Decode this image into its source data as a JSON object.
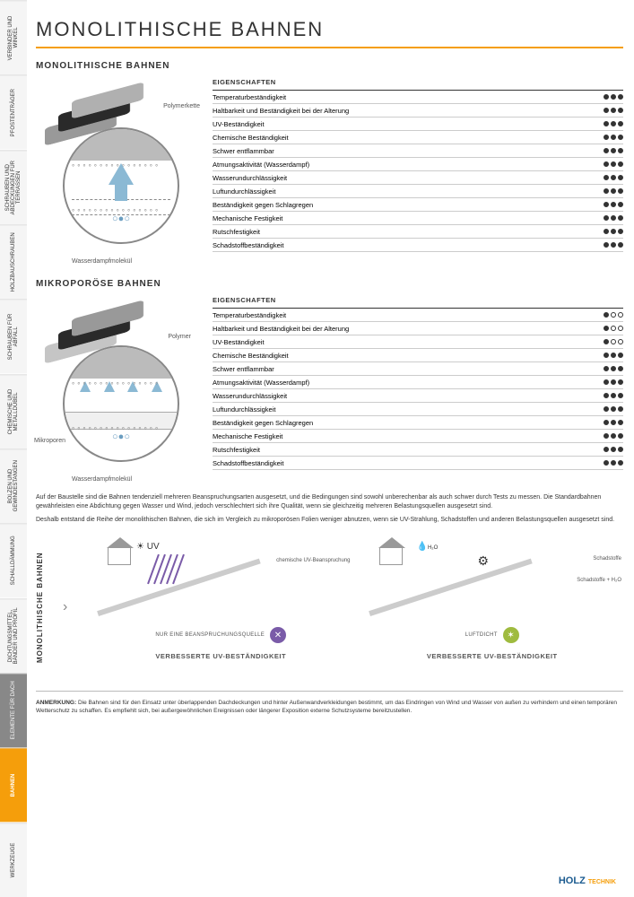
{
  "title": "MONOLITHISCHE BAHNEN",
  "side_tabs": [
    {
      "label": "VERBINDER UND WINKEL",
      "cls": ""
    },
    {
      "label": "PFOSTENTRÄGER",
      "cls": ""
    },
    {
      "label": "SCHRAUBEN UND ABDECKUNGEN FÜR TERRASSEN",
      "cls": ""
    },
    {
      "label": "HOLZBAUSCHRAUBEN",
      "cls": ""
    },
    {
      "label": "SCHRAUBEN FÜR ABFALL",
      "cls": ""
    },
    {
      "label": "CHEMISCHE UND METALLDÜBEL",
      "cls": ""
    },
    {
      "label": "BOLZEN UND GEWINDESTANGEN",
      "cls": ""
    },
    {
      "label": "SCHALLDÄMMUNG",
      "cls": ""
    },
    {
      "label": "DICHTUNGSMITTEL, BÄNDER UND PROFIL",
      "cls": ""
    },
    {
      "label": "ELEMENTE FÜR DACH",
      "cls": "gray"
    },
    {
      "label": "BAHNEN",
      "cls": "active"
    },
    {
      "label": "WERKZEUGE",
      "cls": ""
    }
  ],
  "section1": {
    "heading": "MONOLITHISCHE BAHNEN",
    "label_top": "Polymerkette",
    "label_bottom": "Wasserdampfmolekül",
    "props_header": "EIGENSCHAFTEN",
    "props": [
      {
        "name": "Temperaturbeständigkeit",
        "rating": 3
      },
      {
        "name": "Haltbarkeit und Beständigkeit bei der Alterung",
        "rating": 3
      },
      {
        "name": "UV-Beständigkeit",
        "rating": 3
      },
      {
        "name": "Chemische Beständigkeit",
        "rating": 3
      },
      {
        "name": "Schwer entflammbar",
        "rating": 3
      },
      {
        "name": "Atmungsaktivität (Wasserdampf)",
        "rating": 3
      },
      {
        "name": "Wasserundurchlässigkeit",
        "rating": 3
      },
      {
        "name": "Luftundurchlässigkeit",
        "rating": 3
      },
      {
        "name": "Beständigkeit gegen Schlagregen",
        "rating": 3
      },
      {
        "name": "Mechanische Festigkeit",
        "rating": 3
      },
      {
        "name": "Rutschfestigkeit",
        "rating": 3
      },
      {
        "name": "Schadstoffbeständigkeit",
        "rating": 3
      }
    ]
  },
  "section2": {
    "heading": "MIKROPORÖSE BAHNEN",
    "label_top": "Polymer",
    "label_mid": "Mikroporen",
    "label_bottom": "Wasserdampfmolekül",
    "props_header": "EIGENSCHAFTEN",
    "props": [
      {
        "name": "Temperaturbeständigkeit",
        "rating": 1
      },
      {
        "name": "Haltbarkeit und Beständigkeit bei der Alterung",
        "rating": 1
      },
      {
        "name": "UV-Beständigkeit",
        "rating": 1
      },
      {
        "name": "Chemische Beständigkeit",
        "rating": 3
      },
      {
        "name": "Schwer entflammbar",
        "rating": 3
      },
      {
        "name": "Atmungsaktivität (Wasserdampf)",
        "rating": 3
      },
      {
        "name": "Wasserundurchlässigkeit",
        "rating": 3
      },
      {
        "name": "Luftundurchlässigkeit",
        "rating": 3
      },
      {
        "name": "Beständigkeit gegen Schlagregen",
        "rating": 3
      },
      {
        "name": "Mechanische Festigkeit",
        "rating": 3
      },
      {
        "name": "Rutschfestigkeit",
        "rating": 3
      },
      {
        "name": "Schadstoffbeständigkeit",
        "rating": 3
      }
    ]
  },
  "body": {
    "p1": "Auf der Baustelle sind die Bahnen tendenziell mehreren Beanspruchungsarten ausgesetzt, und die Bedingungen sind sowohl unberechenbar als auch schwer durch Tests zu messen. Die Standardbahnen gewährleisten eine Abdichtung gegen Wasser und Wind, jedoch verschlechtert sich ihre Qualität, wenn sie gleichzeitig mehreren Belastungsquellen ausgesetzt sind.",
    "p2": "Deshalb entstand die Reihe der monolithischen Bahnen, die sich im Vergleich zu mikroporösen Folien weniger abnutzen, wenn sie UV-Strahlung, Schadstoffen und anderen Belastungsquellen ausgesetzt sind."
  },
  "bottom": {
    "rot_label": "MONOLITHISCHE BAHNEN",
    "d1": {
      "uv_label": "UV",
      "leader": "chemische UV-Beanspruchung",
      "sub": "NUR EINE BEANSPRUCHUNGSQUELLE",
      "badge": "✕",
      "title": "VERBESSERTE UV-BESTÄNDIGKEIT"
    },
    "d2": {
      "h2o_label": "H₂O",
      "leader1": "Schadstoffe",
      "leader2": "Schadstoffe + H₂O",
      "sub": "LUFTDICHT",
      "badge": "✶",
      "title": "VERBESSERTE UV-BESTÄNDIGKEIT"
    }
  },
  "footer": {
    "strong": "ANMERKUNG:",
    "text": "Die Bahnen sind für den Einsatz unter überlappenden Dachdeckungen und hinter Außenwandverkleidungen bestimmt, um das Eindringen von Wind und Wasser von außen zu verhindern und einen temporären Wetterschutz zu schaffen. Es empfiehlt sich, bei außergewöhnlichen Ereignissen oder längerer Exposition externe Schutzsysteme bereitzustellen."
  },
  "brand": {
    "p1": "HOLZ",
    "p2": "TECHNIK"
  },
  "colors": {
    "accent": "#f59e0b",
    "blue": "#8bb9d4",
    "purple": "#7a5ba8",
    "green": "#9fbb3f",
    "brand_blue": "#1a5a8f"
  }
}
